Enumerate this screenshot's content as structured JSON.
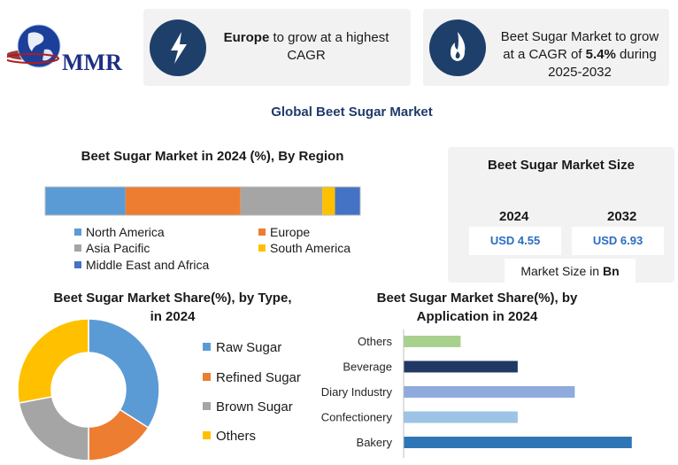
{
  "brand": {
    "name": "MMR"
  },
  "highlights": {
    "europe": {
      "bold": "Europe",
      "rest_line1": " to grow at a highest",
      "line2": "CAGR",
      "icon": "lightning-icon"
    },
    "cagr": {
      "line1": "Beet Sugar Market to grow",
      "line2_pre": "at a CAGR of ",
      "line2_bold": "5.4%",
      "line2_post": " during",
      "line3": "2025-2032",
      "icon": "flame-icon"
    }
  },
  "main_title": "Global Beet Sugar Market",
  "market_size": {
    "title": "Beet Sugar Market Size",
    "years": [
      "2024",
      "2032"
    ],
    "values": [
      "USD 4.55",
      "USD 6.93"
    ],
    "footer_pre": "Market Size in ",
    "footer_bold": "Bn"
  },
  "chart_data": [
    {
      "type": "bar",
      "stacked": true,
      "orientation": "horizontal",
      "title": "Beet Sugar Market in 2024 (%), By Region",
      "series": [
        {
          "name": "North America",
          "value": 25.5,
          "color": "#5b9bd5"
        },
        {
          "name": "Europe",
          "value": 36.5,
          "color": "#ed7d31"
        },
        {
          "name": "Asia Pacific",
          "value": 26,
          "color": "#a5a5a5"
        },
        {
          "name": "South America",
          "value": 4,
          "color": "#ffc000"
        },
        {
          "name": "Middle East and Africa",
          "value": 8,
          "color": "#4472c4"
        }
      ]
    },
    {
      "type": "pie",
      "donut": true,
      "title_line1": "Beet Sugar Market Share(%), by Type,",
      "title_line2": "in 2024",
      "slices": [
        {
          "name": "Raw Sugar",
          "value": 34,
          "color": "#5b9bd5"
        },
        {
          "name": "Refined Sugar",
          "value": 16,
          "color": "#ed7d31"
        },
        {
          "name": "Brown Sugar",
          "value": 22,
          "color": "#a5a5a5"
        },
        {
          "name": "Others",
          "value": 28,
          "color": "#ffc000"
        }
      ]
    },
    {
      "type": "bar",
      "orientation": "horizontal",
      "title_line1": "Beet Sugar Market Share(%), by",
      "title_line2": "Application in 2024",
      "categories": [
        "Others",
        "Beverage",
        "Diary Industry",
        "Confectionery",
        "Bakery"
      ],
      "values": [
        10,
        20,
        30,
        20,
        40
      ],
      "colors": [
        "#a9d18e",
        "#203864",
        "#8faadc",
        "#9dc3e6",
        "#2e75b6"
      ],
      "xlim": [
        0,
        45
      ]
    }
  ]
}
